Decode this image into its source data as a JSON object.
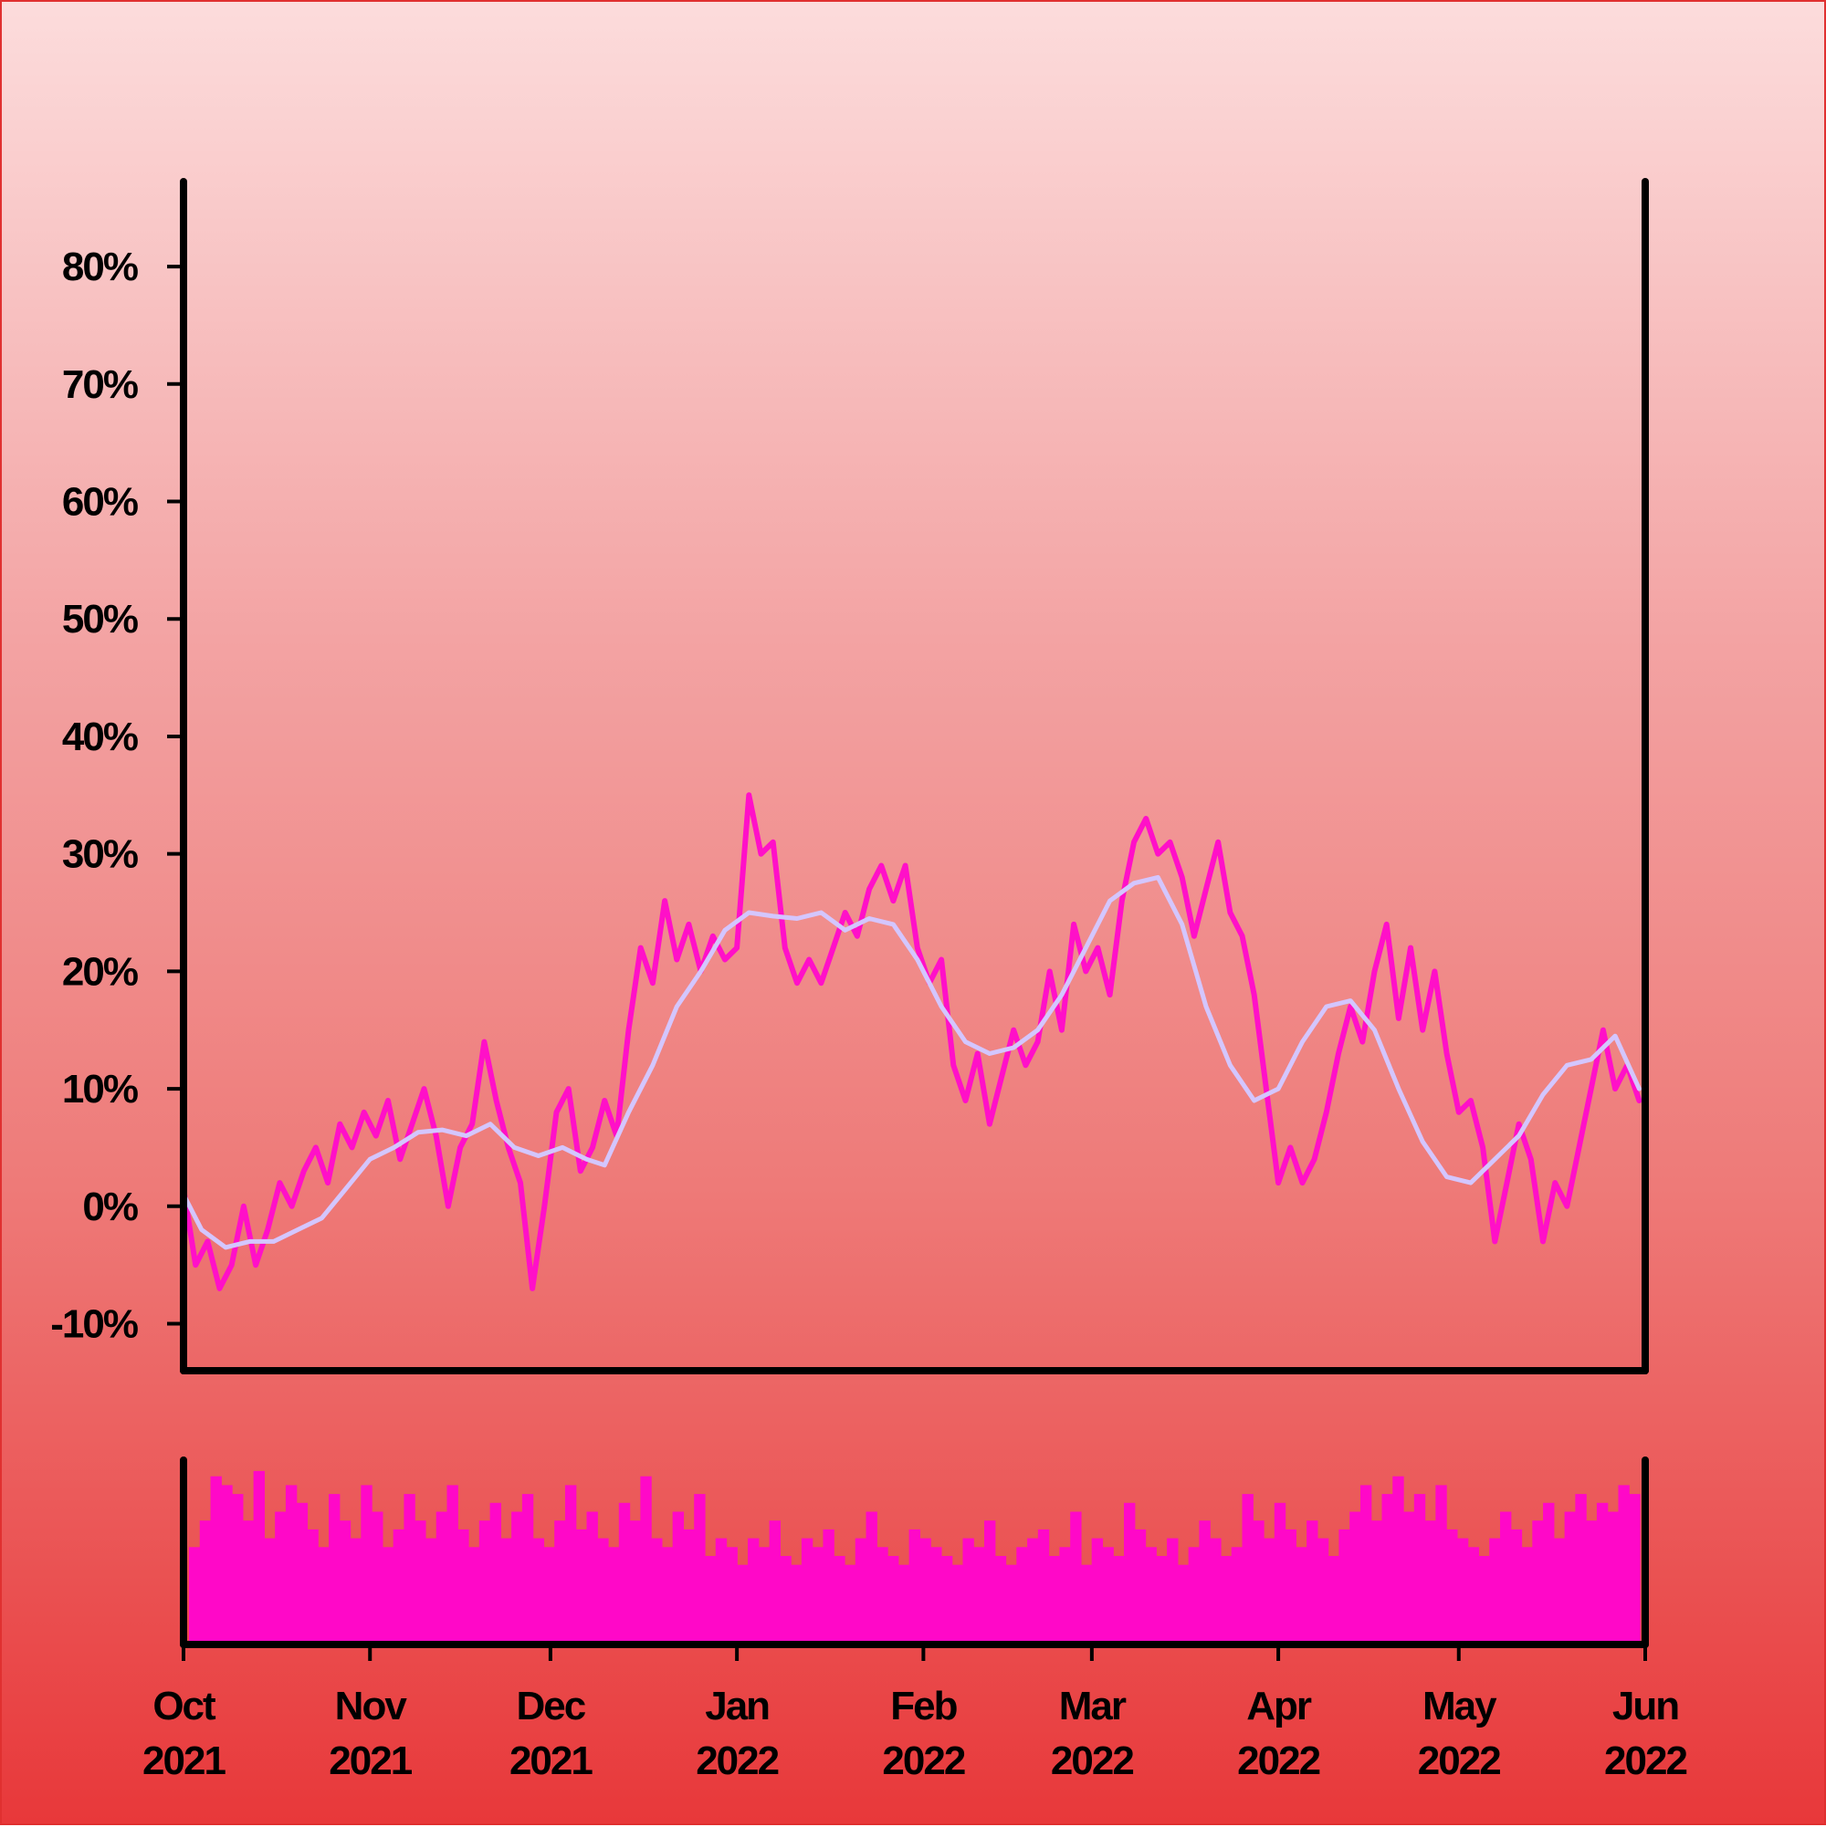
{
  "colors": {
    "price_line": "#ff10c8",
    "moving_average": "#d4c6ff",
    "volume_bars": "#ff08c8",
    "axes": "#000000"
  },
  "chart_data": {
    "type": "line",
    "title": "",
    "xlabel": "",
    "ylabel": "",
    "x_range": [
      "2021-10-01",
      "2022-06-01"
    ],
    "ylim": [
      -14,
      87
    ],
    "y_ticks": [
      {
        "value": 80,
        "label": "80%"
      },
      {
        "value": 70,
        "label": "70%"
      },
      {
        "value": 60,
        "label": "60%"
      },
      {
        "value": 50,
        "label": "50%"
      },
      {
        "value": 40,
        "label": "40%"
      },
      {
        "value": 30,
        "label": "30%"
      },
      {
        "value": 20,
        "label": "20%"
      },
      {
        "value": 10,
        "label": "10%"
      },
      {
        "value": 0,
        "label": "0%"
      },
      {
        "value": -10,
        "label": "-10%"
      }
    ],
    "x_ticks": [
      {
        "date": "2021-10-01",
        "month": "Oct",
        "year": "2021"
      },
      {
        "date": "2021-11-01",
        "month": "Nov",
        "year": "2021"
      },
      {
        "date": "2021-12-01",
        "month": "Dec",
        "year": "2021"
      },
      {
        "date": "2022-01-01",
        "month": "Jan",
        "year": "2022"
      },
      {
        "date": "2022-02-01",
        "month": "Feb",
        "year": "2022"
      },
      {
        "date": "2022-03-01",
        "month": "Mar",
        "year": "2022"
      },
      {
        "date": "2022-04-01",
        "month": "Apr",
        "year": "2022"
      },
      {
        "date": "2022-05-01",
        "month": "May",
        "year": "2022"
      },
      {
        "date": "2022-06-01",
        "month": "Jun",
        "year": "2022"
      }
    ],
    "grid": false,
    "legend": "none",
    "series": [
      {
        "style": "line",
        "points": [
          [
            "2021-10-01",
            1.5
          ],
          [
            "2021-10-03",
            -5
          ],
          [
            "2021-10-05",
            -3
          ],
          [
            "2021-10-07",
            -7
          ],
          [
            "2021-10-09",
            -5
          ],
          [
            "2021-10-11",
            0
          ],
          [
            "2021-10-13",
            -5
          ],
          [
            "2021-10-15",
            -2
          ],
          [
            "2021-10-17",
            2
          ],
          [
            "2021-10-19",
            0
          ],
          [
            "2021-10-21",
            3
          ],
          [
            "2021-10-23",
            5
          ],
          [
            "2021-10-25",
            2
          ],
          [
            "2021-10-27",
            7
          ],
          [
            "2021-10-29",
            5
          ],
          [
            "2021-10-31",
            8
          ],
          [
            "2021-11-02",
            6
          ],
          [
            "2021-11-04",
            9
          ],
          [
            "2021-11-06",
            4
          ],
          [
            "2021-11-08",
            7
          ],
          [
            "2021-11-10",
            10
          ],
          [
            "2021-11-12",
            6
          ],
          [
            "2021-11-14",
            0
          ],
          [
            "2021-11-16",
            5
          ],
          [
            "2021-11-18",
            7
          ],
          [
            "2021-11-20",
            14
          ],
          [
            "2021-11-22",
            9
          ],
          [
            "2021-11-24",
            5
          ],
          [
            "2021-11-26",
            2
          ],
          [
            "2021-11-28",
            -7
          ],
          [
            "2021-11-30",
            0
          ],
          [
            "2021-12-02",
            8
          ],
          [
            "2021-12-04",
            10
          ],
          [
            "2021-12-06",
            3
          ],
          [
            "2021-12-08",
            5
          ],
          [
            "2021-12-10",
            9
          ],
          [
            "2021-12-12",
            6
          ],
          [
            "2021-12-14",
            15
          ],
          [
            "2021-12-16",
            22
          ],
          [
            "2021-12-18",
            19
          ],
          [
            "2021-12-20",
            26
          ],
          [
            "2021-12-22",
            21
          ],
          [
            "2021-12-24",
            24
          ],
          [
            "2021-12-26",
            20
          ],
          [
            "2021-12-28",
            23
          ],
          [
            "2021-12-30",
            21
          ],
          [
            "2022-01-01",
            22
          ],
          [
            "2022-01-03",
            35
          ],
          [
            "2022-01-05",
            30
          ],
          [
            "2022-01-07",
            31
          ],
          [
            "2022-01-09",
            22
          ],
          [
            "2022-01-11",
            19
          ],
          [
            "2022-01-13",
            21
          ],
          [
            "2022-01-15",
            19
          ],
          [
            "2022-01-17",
            22
          ],
          [
            "2022-01-19",
            25
          ],
          [
            "2022-01-21",
            23
          ],
          [
            "2022-01-23",
            27
          ],
          [
            "2022-01-25",
            29
          ],
          [
            "2022-01-27",
            26
          ],
          [
            "2022-01-29",
            29
          ],
          [
            "2022-01-31",
            22
          ],
          [
            "2022-02-02",
            19
          ],
          [
            "2022-02-04",
            21
          ],
          [
            "2022-02-06",
            12
          ],
          [
            "2022-02-08",
            9
          ],
          [
            "2022-02-10",
            13
          ],
          [
            "2022-02-12",
            7
          ],
          [
            "2022-02-14",
            11
          ],
          [
            "2022-02-16",
            15
          ],
          [
            "2022-02-18",
            12
          ],
          [
            "2022-02-20",
            14
          ],
          [
            "2022-02-22",
            20
          ],
          [
            "2022-02-24",
            15
          ],
          [
            "2022-02-26",
            24
          ],
          [
            "2022-02-28",
            20
          ],
          [
            "2022-03-02",
            22
          ],
          [
            "2022-03-04",
            18
          ],
          [
            "2022-03-06",
            26
          ],
          [
            "2022-03-08",
            31
          ],
          [
            "2022-03-10",
            33
          ],
          [
            "2022-03-12",
            30
          ],
          [
            "2022-03-14",
            31
          ],
          [
            "2022-03-16",
            28
          ],
          [
            "2022-03-18",
            23
          ],
          [
            "2022-03-20",
            27
          ],
          [
            "2022-03-22",
            31
          ],
          [
            "2022-03-24",
            25
          ],
          [
            "2022-03-26",
            23
          ],
          [
            "2022-03-28",
            18
          ],
          [
            "2022-03-30",
            10
          ],
          [
            "2022-04-01",
            2
          ],
          [
            "2022-04-03",
            5
          ],
          [
            "2022-04-05",
            2
          ],
          [
            "2022-04-07",
            4
          ],
          [
            "2022-04-09",
            8
          ],
          [
            "2022-04-11",
            13
          ],
          [
            "2022-04-13",
            17
          ],
          [
            "2022-04-15",
            14
          ],
          [
            "2022-04-17",
            20
          ],
          [
            "2022-04-19",
            24
          ],
          [
            "2022-04-21",
            16
          ],
          [
            "2022-04-23",
            22
          ],
          [
            "2022-04-25",
            15
          ],
          [
            "2022-04-27",
            20
          ],
          [
            "2022-04-29",
            13
          ],
          [
            "2022-05-01",
            8
          ],
          [
            "2022-05-03",
            9
          ],
          [
            "2022-05-05",
            5
          ],
          [
            "2022-05-07",
            -3
          ],
          [
            "2022-05-09",
            2
          ],
          [
            "2022-05-11",
            7
          ],
          [
            "2022-05-13",
            4
          ],
          [
            "2022-05-15",
            -3
          ],
          [
            "2022-05-17",
            2
          ],
          [
            "2022-05-19",
            0
          ],
          [
            "2022-05-21",
            5
          ],
          [
            "2022-05-23",
            10
          ],
          [
            "2022-05-25",
            15
          ],
          [
            "2022-05-27",
            10
          ],
          [
            "2022-05-29",
            12
          ],
          [
            "2022-05-31",
            9
          ]
        ]
      },
      {
        "style": "line",
        "points": [
          [
            "2021-10-01",
            1
          ],
          [
            "2021-10-04",
            -2
          ],
          [
            "2021-10-08",
            -3.5
          ],
          [
            "2021-10-12",
            -3
          ],
          [
            "2021-10-16",
            -3
          ],
          [
            "2021-10-20",
            -2
          ],
          [
            "2021-10-24",
            -1
          ],
          [
            "2021-10-28",
            1.5
          ],
          [
            "2021-11-01",
            4
          ],
          [
            "2021-11-05",
            5
          ],
          [
            "2021-11-09",
            6.3
          ],
          [
            "2021-11-13",
            6.5
          ],
          [
            "2021-11-17",
            6
          ],
          [
            "2021-11-21",
            7
          ],
          [
            "2021-11-25",
            5
          ],
          [
            "2021-11-29",
            4.3
          ],
          [
            "2021-12-03",
            5
          ],
          [
            "2021-12-07",
            4
          ],
          [
            "2021-12-10",
            3.5
          ],
          [
            "2021-12-14",
            8
          ],
          [
            "2021-12-18",
            12
          ],
          [
            "2021-12-22",
            17
          ],
          [
            "2021-12-26",
            20
          ],
          [
            "2021-12-30",
            23.5
          ],
          [
            "2022-01-03",
            25
          ],
          [
            "2022-01-07",
            24.7
          ],
          [
            "2022-01-11",
            24.5
          ],
          [
            "2022-01-15",
            25
          ],
          [
            "2022-01-19",
            23.5
          ],
          [
            "2022-01-23",
            24.5
          ],
          [
            "2022-01-27",
            24
          ],
          [
            "2022-01-31",
            21
          ],
          [
            "2022-02-04",
            17
          ],
          [
            "2022-02-08",
            14
          ],
          [
            "2022-02-12",
            13
          ],
          [
            "2022-02-16",
            13.5
          ],
          [
            "2022-02-20",
            15
          ],
          [
            "2022-02-24",
            18
          ],
          [
            "2022-02-28",
            22
          ],
          [
            "2022-03-04",
            26
          ],
          [
            "2022-03-08",
            27.5
          ],
          [
            "2022-03-12",
            28
          ],
          [
            "2022-03-16",
            24
          ],
          [
            "2022-03-20",
            17
          ],
          [
            "2022-03-24",
            12
          ],
          [
            "2022-03-28",
            9
          ],
          [
            "2022-04-01",
            10
          ],
          [
            "2022-04-05",
            14
          ],
          [
            "2022-04-09",
            17
          ],
          [
            "2022-04-13",
            17.5
          ],
          [
            "2022-04-17",
            15
          ],
          [
            "2022-04-21",
            10
          ],
          [
            "2022-04-25",
            5.5
          ],
          [
            "2022-04-29",
            2.5
          ],
          [
            "2022-05-03",
            2
          ],
          [
            "2022-05-07",
            4
          ],
          [
            "2022-05-11",
            6
          ],
          [
            "2022-05-15",
            9.5
          ],
          [
            "2022-05-19",
            12
          ],
          [
            "2022-05-23",
            12.5
          ],
          [
            "2022-05-27",
            14.5
          ],
          [
            "2022-05-31",
            10
          ]
        ]
      }
    ],
    "volume": {
      "style": "bar",
      "scale": "relative",
      "values": [
        0.55,
        0.7,
        0.95,
        0.9,
        0.85,
        0.7,
        0.98,
        0.6,
        0.75,
        0.9,
        0.8,
        0.65,
        0.55,
        0.85,
        0.7,
        0.6,
        0.9,
        0.75,
        0.55,
        0.65,
        0.85,
        0.7,
        0.6,
        0.75,
        0.9,
        0.65,
        0.55,
        0.7,
        0.8,
        0.6,
        0.75,
        0.85,
        0.6,
        0.55,
        0.7,
        0.9,
        0.65,
        0.75,
        0.6,
        0.55,
        0.8,
        0.7,
        0.95,
        0.6,
        0.55,
        0.75,
        0.65,
        0.85,
        0.5,
        0.6,
        0.55,
        0.45,
        0.6,
        0.55,
        0.7,
        0.5,
        0.45,
        0.6,
        0.55,
        0.65,
        0.5,
        0.45,
        0.6,
        0.75,
        0.55,
        0.5,
        0.45,
        0.65,
        0.6,
        0.55,
        0.5,
        0.45,
        0.6,
        0.55,
        0.7,
        0.5,
        0.45,
        0.55,
        0.6,
        0.65,
        0.5,
        0.55,
        0.75,
        0.45,
        0.6,
        0.55,
        0.5,
        0.8,
        0.65,
        0.55,
        0.5,
        0.6,
        0.45,
        0.55,
        0.7,
        0.6,
        0.5,
        0.55,
        0.85,
        0.7,
        0.6,
        0.8,
        0.65,
        0.55,
        0.7,
        0.6,
        0.5,
        0.65,
        0.75,
        0.9,
        0.7,
        0.85,
        0.95,
        0.75,
        0.85,
        0.7,
        0.9,
        0.65,
        0.6,
        0.55,
        0.5,
        0.6,
        0.75,
        0.65,
        0.55,
        0.7,
        0.8,
        0.6,
        0.75,
        0.85,
        0.7,
        0.8,
        0.75,
        0.9,
        0.85
      ]
    }
  }
}
